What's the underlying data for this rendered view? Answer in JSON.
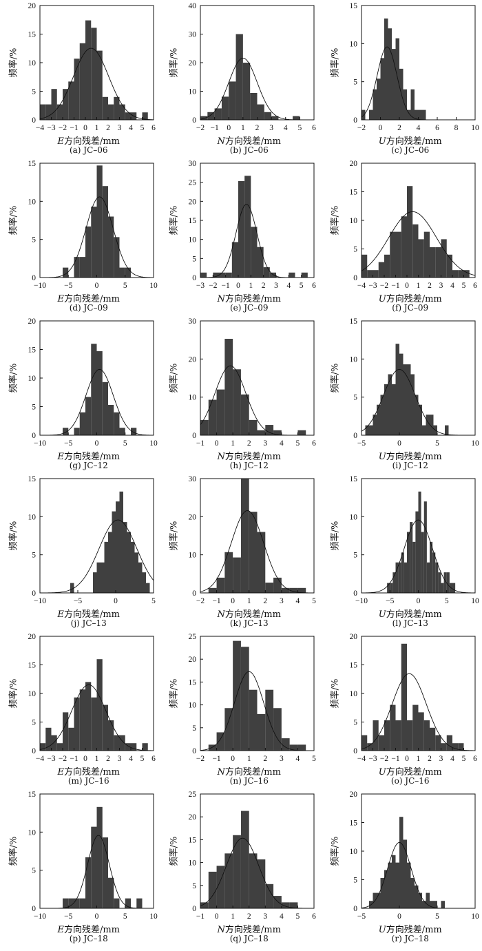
{
  "style": {
    "bar_color": "#404040",
    "curve_color": "#111111"
  },
  "chart_data": [
    {
      "type": "bar",
      "caption": "(a) JC–06",
      "xlabel_var": "E",
      "xlabel_rest": "方向残差/mm",
      "ylabel": "频率/%",
      "xlim": [
        -4,
        6
      ],
      "ylim": [
        0,
        20
      ],
      "xticks": [
        -4,
        -3,
        -2,
        -1,
        0,
        1,
        2,
        3,
        4,
        5,
        6
      ],
      "yticks": [
        0,
        5,
        10,
        15,
        20
      ],
      "bins": [
        -3.75,
        -3.25,
        -2.75,
        -2.25,
        -1.75,
        -1.25,
        -0.75,
        -0.25,
        0.25,
        0.75,
        1.25,
        1.75,
        2.25,
        2.75,
        3.25,
        3.75,
        4.25,
        4.75,
        5.25
      ],
      "bin_width": 0.5,
      "values": [
        2.7,
        2.7,
        5.4,
        2.7,
        5.4,
        6.7,
        10.7,
        13.4,
        17.4,
        16.1,
        12.1,
        4.0,
        2.7,
        4.0,
        2.7,
        1.3,
        1.3,
        0,
        1.3
      ],
      "normal": {
        "mean": 0.5,
        "sd": 1.55
      }
    },
    {
      "type": "bar",
      "caption": "(b) JC–06",
      "xlabel_var": "N",
      "xlabel_rest": "方向残差/mm",
      "ylabel": "频率/%",
      "xlim": [
        -2,
        6
      ],
      "ylim": [
        0,
        40
      ],
      "xticks": [
        -2,
        -1,
        0,
        1,
        2,
        3,
        4,
        5,
        6
      ],
      "yticks": [
        0,
        10,
        20,
        30,
        40
      ],
      "bins": [
        -2.25,
        -1.75,
        -1.25,
        -0.75,
        -0.25,
        0.25,
        0.75,
        1.25,
        1.75,
        2.25,
        2.75,
        3.25,
        3.75,
        4.25,
        4.75
      ],
      "bin_width": 0.5,
      "values": [
        0,
        1.3,
        2.7,
        4.0,
        8.1,
        13.4,
        30.0,
        20.0,
        9.4,
        5.4,
        2.7,
        1.3,
        0,
        0,
        1.3
      ],
      "normal": {
        "mean": 1.0,
        "sd": 1.0
      }
    },
    {
      "type": "bar",
      "caption": "(c) JC–06",
      "xlabel_var": "U",
      "xlabel_rest": "方向残差/mm",
      "ylabel": "频率/%",
      "xlim": [
        -2,
        10
      ],
      "ylim": [
        0,
        15
      ],
      "xticks": [
        -2,
        0,
        2,
        4,
        6,
        8,
        10
      ],
      "yticks": [
        0,
        5,
        10,
        15
      ],
      "bins": [
        -1.8,
        -1.4,
        -1.0,
        -0.6,
        -0.2,
        0.2,
        0.6,
        1.0,
        1.4,
        1.8,
        2.2,
        2.6,
        3.0,
        3.4,
        3.8,
        4.2,
        4.6
      ],
      "bin_width": 0.4,
      "values": [
        1.3,
        0,
        1.3,
        4.0,
        5.4,
        8.1,
        13.3,
        12.0,
        9.3,
        10.7,
        6.7,
        4.0,
        1.3,
        4.0,
        1.3,
        1.3,
        1.3
      ],
      "normal": {
        "mean": 0.7,
        "sd": 1.05
      }
    },
    {
      "type": "bar",
      "caption": "(d) JC–09",
      "xlabel_var": "E",
      "xlabel_rest": "方向残差/mm",
      "ylabel": "频率/%",
      "xlim": [
        -10,
        10
      ],
      "ylim": [
        0,
        15
      ],
      "xticks": [
        -10,
        -5,
        0,
        5,
        10
      ],
      "yticks": [
        0,
        5,
        10,
        15
      ],
      "bins": [
        -5.5,
        -4.5,
        -3.5,
        -2.5,
        -1.5,
        -0.5,
        0.5,
        1.5,
        2.5,
        3.5,
        4.5,
        5.5
      ],
      "bin_width": 1,
      "values": [
        1.3,
        0,
        2.7,
        2.7,
        6.7,
        9.3,
        14.7,
        12.0,
        8.0,
        5.3,
        1.3,
        1.3
      ],
      "normal": {
        "mean": 0.5,
        "sd": 2.4
      }
    },
    {
      "type": "bar",
      "caption": "(e) JC–09",
      "xlabel_var": "N",
      "xlabel_rest": "方向残差/mm",
      "ylabel": "频率/%",
      "xlim": [
        -3,
        6
      ],
      "ylim": [
        0,
        30
      ],
      "xticks": [
        -3,
        -2,
        -1,
        0,
        1,
        2,
        3,
        4,
        5,
        6
      ],
      "yticks": [
        0,
        5,
        10,
        15,
        20,
        25,
        30
      ],
      "bins": [
        -2.75,
        -2.25,
        -1.75,
        -1.25,
        -0.75,
        -0.25,
        0.25,
        0.75,
        1.25,
        1.75,
        2.25,
        2.75,
        3.25,
        3.75,
        4.25,
        4.75,
        5.25
      ],
      "bin_width": 0.5,
      "values": [
        1.3,
        0,
        1.3,
        1.3,
        1.3,
        9.3,
        25.3,
        26.7,
        13.3,
        8.0,
        2.7,
        1.3,
        0,
        0,
        1.3,
        0,
        1.3
      ],
      "normal": {
        "mean": 0.65,
        "sd": 0.83
      }
    },
    {
      "type": "bar",
      "caption": "(f) JC–09",
      "xlabel_var": "U",
      "xlabel_rest": "方向残差/mm",
      "ylabel": "频率/%",
      "xlim": [
        -4,
        6
      ],
      "ylim": [
        0,
        20
      ],
      "xticks": [
        -4,
        -3,
        -2,
        -1,
        0,
        1,
        2,
        3,
        4,
        5,
        6
      ],
      "yticks": [
        0,
        5,
        10,
        15,
        20
      ],
      "bins": [
        -3.75,
        -3.25,
        -2.75,
        -2.25,
        -1.75,
        -1.25,
        -0.75,
        -0.25,
        0.25,
        0.75,
        1.25,
        1.75,
        2.25,
        2.75,
        3.25,
        3.75,
        4.25,
        4.75,
        5.25
      ],
      "bin_width": 0.5,
      "values": [
        4.0,
        1.3,
        1.3,
        2.7,
        4.0,
        8.0,
        8.0,
        10.7,
        16.0,
        9.3,
        6.7,
        8.0,
        5.3,
        5.3,
        6.7,
        4.0,
        1.3,
        1.3,
        1.3
      ],
      "normal": {
        "mean": 0.5,
        "sd": 2.1
      }
    },
    {
      "type": "bar",
      "caption": "(g) JC–12",
      "xlabel_var": "E",
      "xlabel_rest": "方向残差/mm",
      "ylabel": "频率/%",
      "xlim": [
        -10,
        10
      ],
      "ylim": [
        0,
        20
      ],
      "xticks": [
        -10,
        -5,
        0,
        5,
        10
      ],
      "yticks": [
        0,
        5,
        10,
        15,
        20
      ],
      "bins": [
        -5.5,
        -4.5,
        -3.5,
        -2.5,
        -1.5,
        -0.5,
        0.5,
        1.5,
        2.5,
        3.5,
        4.5,
        5.5,
        6.5
      ],
      "bin_width": 1,
      "values": [
        1.3,
        0,
        1.3,
        4.0,
        6.7,
        16.0,
        14.7,
        9.3,
        5.3,
        4.0,
        1.3,
        0,
        1.3
      ],
      "normal": {
        "mean": 0.5,
        "sd": 2.4
      }
    },
    {
      "type": "bar",
      "caption": "(h) JC–12",
      "xlabel_var": "N",
      "xlabel_rest": "方向残差/mm",
      "ylabel": "频率/%",
      "xlim": [
        -1,
        6
      ],
      "ylim": [
        0,
        30
      ],
      "xticks": [
        -1,
        0,
        1,
        2,
        3,
        4,
        5,
        6
      ],
      "yticks": [
        0,
        10,
        20,
        30
      ],
      "bins": [
        -0.75,
        -0.25,
        0.25,
        0.75,
        1.25,
        1.75,
        2.25,
        2.75,
        3.25,
        3.75,
        4.25,
        4.75,
        5.25
      ],
      "bin_width": 0.5,
      "values": [
        4.0,
        9.3,
        12.0,
        25.3,
        17.3,
        10.7,
        4.0,
        1.3,
        2.7,
        1.3,
        0,
        0,
        1.3
      ],
      "normal": {
        "mean": 0.85,
        "sd": 0.95
      }
    },
    {
      "type": "bar",
      "caption": "(i) JC–12",
      "xlabel_var": "U",
      "xlabel_rest": "方向残差/mm",
      "ylabel": "频率/%",
      "xlim": [
        -5,
        10
      ],
      "ylim": [
        0,
        15
      ],
      "xticks": [
        -5,
        0,
        5,
        10
      ],
      "yticks": [
        0,
        5,
        10,
        15
      ],
      "bins": [
        -4.25,
        -3.75,
        -3.25,
        -2.75,
        -2.25,
        -1.75,
        -1.25,
        -0.75,
        -0.25,
        0.25,
        0.75,
        1.25,
        1.75,
        2.25,
        2.75,
        3.25,
        3.75,
        4.25,
        4.75,
        5.25,
        5.75,
        6.25
      ],
      "bin_width": 0.5,
      "values": [
        1.3,
        1.3,
        2.7,
        4.0,
        5.3,
        6.7,
        8.0,
        6.7,
        12.0,
        10.7,
        9.3,
        9.3,
        8.0,
        5.3,
        4.0,
        1.3,
        2.7,
        2.7,
        1.3,
        0,
        0,
        1.3
      ],
      "normal": {
        "mean": 0.0,
        "sd": 2.1
      }
    },
    {
      "type": "bar",
      "caption": "(j) JC–13",
      "xlabel_var": "E",
      "xlabel_rest": "方向残差/mm",
      "ylabel": "频率/%",
      "xlim": [
        -10,
        5
      ],
      "ylim": [
        0,
        15
      ],
      "xticks": [
        -10,
        -5,
        0,
        5
      ],
      "yticks": [
        0,
        5,
        10,
        15
      ],
      "bins": [
        -5.75,
        -5.25,
        -4.75,
        -4.25,
        -3.75,
        -3.25,
        -2.75,
        -2.25,
        -1.75,
        -1.25,
        -0.75,
        -0.25,
        0.25,
        0.75,
        1.25,
        1.75,
        2.25,
        2.75,
        3.25,
        3.75,
        4.25
      ],
      "bin_width": 0.5,
      "values": [
        1.3,
        0,
        0,
        0,
        0,
        0,
        2.7,
        4.0,
        4.0,
        6.7,
        8.0,
        10.7,
        12.0,
        13.3,
        9.3,
        8.0,
        6.7,
        5.3,
        4.0,
        2.7,
        1.3
      ],
      "normal": {
        "mean": 0.3,
        "sd": 2.5
      }
    },
    {
      "type": "bar",
      "caption": "(k) JC–13",
      "xlabel_var": "N",
      "xlabel_rest": "方向残差/mm",
      "ylabel": "频率/%",
      "xlim": [
        -2,
        5
      ],
      "ylim": [
        0,
        30
      ],
      "xticks": [
        -2,
        -1,
        0,
        1,
        2,
        3,
        4,
        5
      ],
      "yticks": [
        0,
        10,
        20,
        30
      ],
      "bins": [
        -1.25,
        -0.75,
        -0.25,
        0.25,
        0.75,
        1.25,
        1.75,
        2.25,
        2.75,
        3.25,
        3.75,
        4.25
      ],
      "bin_width": 0.5,
      "values": [
        1.3,
        4.0,
        10.7,
        9.3,
        30.0,
        21.3,
        16.0,
        2.7,
        4.0,
        1.3,
        1.3,
        1.3
      ],
      "normal": {
        "mean": 0.9,
        "sd": 1.0
      }
    },
    {
      "type": "bar",
      "caption": "(l) JC–13",
      "xlabel_var": "U",
      "xlabel_rest": "方向残差/mm",
      "ylabel": "频率/%",
      "xlim": [
        -10,
        10
      ],
      "ylim": [
        0,
        15
      ],
      "xticks": [
        -10,
        -5,
        0,
        5,
        10
      ],
      "yticks": [
        0,
        5,
        10,
        15
      ],
      "bins": [
        -5.25,
        -4.75,
        -4.25,
        -3.75,
        -3.25,
        -2.75,
        -2.25,
        -1.75,
        -1.25,
        -0.75,
        -0.25,
        0.25,
        0.75,
        1.25,
        1.75,
        2.25,
        2.75,
        3.25,
        3.75,
        4.25,
        4.75,
        5.25,
        5.75,
        6.25
      ],
      "bin_width": 0.5,
      "values": [
        1.3,
        1.3,
        2.7,
        4.0,
        4.0,
        5.3,
        4.0,
        8.0,
        9.3,
        6.7,
        10.7,
        13.3,
        8.0,
        12.0,
        4.0,
        6.7,
        5.3,
        4.0,
        2.7,
        1.3,
        2.7,
        2.7,
        1.3,
        1.3
      ],
      "normal": {
        "mean": 0.0,
        "sd": 2.5
      }
    },
    {
      "type": "bar",
      "caption": "(m) JC–16",
      "xlabel_var": "E",
      "xlabel_rest": "方向残差/mm",
      "ylabel": "频率/%",
      "xlim": [
        -4,
        6
      ],
      "ylim": [
        0,
        20
      ],
      "xticks": [
        -4,
        -3,
        -2,
        -1,
        0,
        1,
        2,
        3,
        4,
        5,
        6
      ],
      "yticks": [
        0,
        5,
        10,
        15,
        20
      ],
      "bins": [
        -3.75,
        -3.25,
        -2.75,
        -2.25,
        -1.75,
        -1.25,
        -0.75,
        -0.25,
        0.25,
        0.75,
        1.25,
        1.75,
        2.25,
        2.75,
        3.25,
        3.75,
        4.25,
        4.75,
        5.25
      ],
      "bin_width": 0.5,
      "values": [
        1.3,
        4.0,
        2.7,
        1.3,
        6.7,
        4.0,
        9.3,
        10.7,
        12.0,
        9.3,
        16.0,
        8.0,
        5.3,
        2.7,
        2.7,
        1.3,
        1.3,
        0,
        1.3
      ],
      "normal": {
        "mean": 0.3,
        "sd": 1.5
      }
    },
    {
      "type": "bar",
      "caption": "(n) JC–16",
      "xlabel_var": "N",
      "xlabel_rest": "方向残差/mm",
      "ylabel": "频率/%",
      "xlim": [
        -2,
        5
      ],
      "ylim": [
        0,
        25
      ],
      "xticks": [
        -2,
        -1,
        0,
        1,
        2,
        3,
        4,
        5
      ],
      "yticks": [
        0,
        5,
        10,
        15,
        20,
        25
      ],
      "bins": [
        -1.25,
        -0.75,
        -0.25,
        0.25,
        0.75,
        1.25,
        1.75,
        2.25,
        2.75,
        3.25,
        3.75,
        4.25
      ],
      "bin_width": 0.5,
      "values": [
        1.3,
        4.0,
        9.3,
        24.0,
        22.7,
        13.3,
        8.0,
        13.3,
        9.3,
        2.7,
        1.3,
        1.3
      ],
      "normal": {
        "mean": 1.0,
        "sd": 0.9
      }
    },
    {
      "type": "bar",
      "caption": "(o) JC–16",
      "xlabel_var": "U",
      "xlabel_rest": "方向残差/mm",
      "ylabel": "频率/%",
      "xlim": [
        -4,
        6
      ],
      "ylim": [
        0,
        20
      ],
      "xticks": [
        -4,
        -3,
        -2,
        -1,
        0,
        1,
        2,
        3,
        4,
        5,
        6
      ],
      "yticks": [
        0,
        5,
        10,
        15,
        20
      ],
      "bins": [
        -3.75,
        -3.25,
        -2.75,
        -2.25,
        -1.75,
        -1.25,
        -0.75,
        -0.25,
        0.25,
        0.75,
        1.25,
        1.75,
        2.25,
        2.75,
        3.25,
        3.75,
        4.25,
        4.75
      ],
      "bin_width": 0.5,
      "values": [
        2.7,
        1.3,
        5.3,
        2.7,
        5.3,
        8.0,
        5.3,
        18.7,
        5.3,
        8.0,
        6.7,
        5.3,
        4.0,
        2.7,
        1.3,
        2.7,
        1.3,
        1.3
      ],
      "normal": {
        "mean": 0.2,
        "sd": 1.5
      }
    },
    {
      "type": "bar",
      "caption": "(p) JC–18",
      "xlabel_var": "E",
      "xlabel_rest": "方向残差/mm",
      "ylabel": "频率/%",
      "xlim": [
        -10,
        10
      ],
      "ylim": [
        0,
        15
      ],
      "xticks": [
        -10,
        -5,
        0,
        5,
        10
      ],
      "yticks": [
        0,
        5,
        10,
        15
      ],
      "bins": [
        -5.5,
        -4.5,
        -3.5,
        -2.5,
        -1.5,
        -0.5,
        0.5,
        1.5,
        2.5,
        3.5,
        4.5,
        5.5,
        6.5,
        7.5
      ],
      "bin_width": 1,
      "values": [
        1.3,
        1.3,
        1.3,
        1.3,
        6.7,
        10.7,
        13.3,
        9.3,
        4.0,
        1.3,
        0,
        1.3,
        0,
        1.3
      ],
      "normal": {
        "mean": 0.3,
        "sd": 1.9
      }
    },
    {
      "type": "bar",
      "caption": "(q) JC–18",
      "xlabel_var": "N",
      "xlabel_rest": "方向残差/mm",
      "ylabel": "频率/%",
      "xlim": [
        -1,
        6
      ],
      "ylim": [
        0,
        25
      ],
      "xticks": [
        -1,
        0,
        1,
        2,
        3,
        4,
        5,
        6
      ],
      "yticks": [
        0,
        5,
        10,
        15,
        20,
        25
      ],
      "bins": [
        -0.75,
        -0.25,
        0.25,
        0.75,
        1.25,
        1.75,
        2.25,
        2.75,
        3.25,
        3.75,
        4.25,
        4.75
      ],
      "bin_width": 0.5,
      "values": [
        1.3,
        8.0,
        9.3,
        12.0,
        16.0,
        21.3,
        12.0,
        10.7,
        5.3,
        2.7,
        1.3,
        1.3
      ],
      "normal": {
        "mean": 1.6,
        "sd": 1.0
      }
    },
    {
      "type": "bar",
      "caption": "(r) JC–18",
      "xlabel_var": "U",
      "xlabel_rest": "方向残差/mm",
      "ylabel": "频率/%",
      "xlim": [
        -5,
        10
      ],
      "ylim": [
        0,
        20
      ],
      "xticks": [
        -5,
        0,
        5,
        10
      ],
      "yticks": [
        0,
        5,
        10,
        15,
        20
      ],
      "bins": [
        -3.75,
        -3.25,
        -2.75,
        -2.25,
        -1.75,
        -1.25,
        -0.75,
        -0.25,
        0.25,
        0.75,
        1.25,
        1.75,
        2.25,
        2.75,
        3.25,
        3.75,
        4.25,
        4.75,
        5.25,
        5.75
      ],
      "bin_width": 0.5,
      "values": [
        1.3,
        2.7,
        2.7,
        5.3,
        6.7,
        8.0,
        9.3,
        8.0,
        16.0,
        12.0,
        8.0,
        5.3,
        4.0,
        2.7,
        1.3,
        2.7,
        1.3,
        1.3,
        0,
        1.3
      ],
      "normal": {
        "mean": 0.0,
        "sd": 1.55
      }
    }
  ]
}
